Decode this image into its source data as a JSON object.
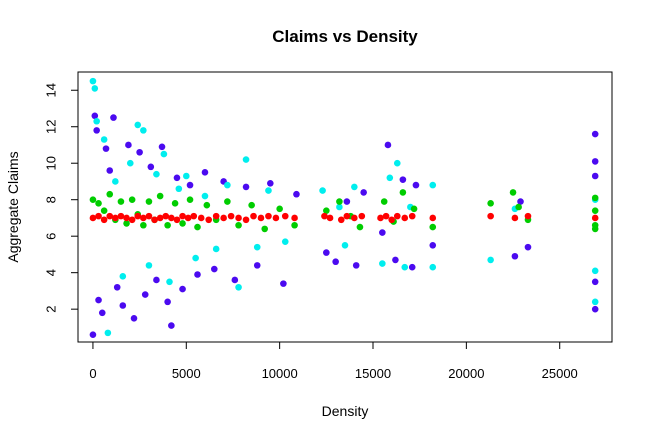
{
  "chart_data": {
    "type": "scatter",
    "title": "Claims vs Density",
    "xlabel": "Density",
    "ylabel": "Aggregate Claims",
    "xlim": [
      -800,
      27800
    ],
    "ylim": [
      0.2,
      15.0
    ],
    "x_ticks": [
      0,
      5000,
      10000,
      15000,
      20000,
      25000
    ],
    "x_tick_labels": [
      "0",
      "5000",
      "10000",
      "15000",
      "20000",
      "25000"
    ],
    "y_ticks": [
      2,
      4,
      6,
      8,
      10,
      12,
      14
    ],
    "y_tick_labels": [
      "2",
      "4",
      "6",
      "8",
      "10",
      "12",
      "14"
    ],
    "grid": false,
    "legend": "none",
    "series": [
      {
        "color": "#4b0af0",
        "points": [
          [
            0,
            0.6
          ],
          [
            100,
            12.6
          ],
          [
            200,
            11.8
          ],
          [
            300,
            2.5
          ],
          [
            500,
            1.8
          ],
          [
            700,
            10.8
          ],
          [
            900,
            9.6
          ],
          [
            1100,
            12.5
          ],
          [
            1300,
            3.2
          ],
          [
            1600,
            2.2
          ],
          [
            1900,
            11.0
          ],
          [
            2200,
            1.5
          ],
          [
            2500,
            10.6
          ],
          [
            2800,
            2.8
          ],
          [
            3100,
            9.8
          ],
          [
            3400,
            3.6
          ],
          [
            3700,
            10.9
          ],
          [
            4000,
            2.4
          ],
          [
            4200,
            1.1
          ],
          [
            4500,
            9.2
          ],
          [
            4800,
            3.1
          ],
          [
            5200,
            8.8
          ],
          [
            5600,
            3.9
          ],
          [
            6000,
            9.5
          ],
          [
            6500,
            4.2
          ],
          [
            7000,
            9.0
          ],
          [
            7600,
            3.6
          ],
          [
            8200,
            8.7
          ],
          [
            8800,
            4.4
          ],
          [
            9500,
            8.9
          ],
          [
            10200,
            3.4
          ],
          [
            10900,
            8.3
          ],
          [
            12500,
            5.1
          ],
          [
            13000,
            4.6
          ],
          [
            13600,
            7.9
          ],
          [
            14100,
            4.4
          ],
          [
            14500,
            8.4
          ],
          [
            15500,
            6.2
          ],
          [
            15800,
            11.0
          ],
          [
            16200,
            4.7
          ],
          [
            16600,
            9.1
          ],
          [
            17100,
            4.3
          ],
          [
            17300,
            8.8
          ],
          [
            18200,
            5.5
          ],
          [
            22600,
            4.9
          ],
          [
            22900,
            7.9
          ],
          [
            23300,
            5.4
          ],
          [
            26900,
            2.0
          ],
          [
            26900,
            11.6
          ],
          [
            26900,
            10.1
          ],
          [
            26900,
            9.3
          ],
          [
            26900,
            3.5
          ]
        ]
      },
      {
        "color": "#00eeee",
        "points": [
          [
            0,
            14.5
          ],
          [
            100,
            14.1
          ],
          [
            200,
            12.3
          ],
          [
            600,
            11.3
          ],
          [
            800,
            0.7
          ],
          [
            1200,
            9.0
          ],
          [
            1600,
            3.8
          ],
          [
            2000,
            10.0
          ],
          [
            2400,
            12.1
          ],
          [
            2700,
            11.8
          ],
          [
            3000,
            4.4
          ],
          [
            3400,
            9.4
          ],
          [
            3800,
            10.5
          ],
          [
            4100,
            3.5
          ],
          [
            4600,
            8.6
          ],
          [
            5000,
            9.3
          ],
          [
            5500,
            4.8
          ],
          [
            6000,
            8.2
          ],
          [
            6600,
            5.3
          ],
          [
            7200,
            8.8
          ],
          [
            7800,
            3.2
          ],
          [
            8200,
            10.2
          ],
          [
            8800,
            5.4
          ],
          [
            9400,
            8.5
          ],
          [
            10300,
            5.7
          ],
          [
            12300,
            8.5
          ],
          [
            13200,
            7.6
          ],
          [
            13500,
            5.5
          ],
          [
            14000,
            8.7
          ],
          [
            15500,
            4.5
          ],
          [
            15900,
            9.2
          ],
          [
            16300,
            10.0
          ],
          [
            16700,
            4.3
          ],
          [
            17000,
            7.6
          ],
          [
            18200,
            8.8
          ],
          [
            18200,
            4.3
          ],
          [
            21300,
            4.7
          ],
          [
            22600,
            7.5
          ],
          [
            26900,
            2.4
          ],
          [
            26900,
            8.0
          ],
          [
            26900,
            4.1
          ]
        ]
      },
      {
        "color": "#00cd00",
        "points": [
          [
            0,
            8.0
          ],
          [
            300,
            7.8
          ],
          [
            600,
            7.4
          ],
          [
            900,
            8.3
          ],
          [
            1200,
            6.9
          ],
          [
            1500,
            7.9
          ],
          [
            1800,
            6.7
          ],
          [
            2100,
            8.0
          ],
          [
            2400,
            7.2
          ],
          [
            2700,
            6.6
          ],
          [
            3000,
            7.9
          ],
          [
            3300,
            6.9
          ],
          [
            3600,
            8.2
          ],
          [
            4000,
            6.6
          ],
          [
            4400,
            7.8
          ],
          [
            4800,
            6.7
          ],
          [
            5200,
            8.0
          ],
          [
            5600,
            6.5
          ],
          [
            6100,
            7.7
          ],
          [
            6600,
            6.9
          ],
          [
            7200,
            7.9
          ],
          [
            7800,
            6.6
          ],
          [
            8500,
            7.7
          ],
          [
            9200,
            6.4
          ],
          [
            10000,
            7.5
          ],
          [
            10800,
            6.6
          ],
          [
            12500,
            7.4
          ],
          [
            13200,
            7.9
          ],
          [
            13800,
            7.1
          ],
          [
            14300,
            6.5
          ],
          [
            15600,
            7.9
          ],
          [
            16100,
            6.8
          ],
          [
            16600,
            8.4
          ],
          [
            17200,
            7.5
          ],
          [
            18200,
            6.5
          ],
          [
            21300,
            7.8
          ],
          [
            22500,
            8.4
          ],
          [
            22800,
            7.6
          ],
          [
            23300,
            6.9
          ],
          [
            26900,
            6.6
          ],
          [
            26900,
            7.4
          ],
          [
            26900,
            8.1
          ],
          [
            26900,
            6.4
          ]
        ]
      },
      {
        "color": "#ff0000",
        "points": [
          [
            0,
            7.0
          ],
          [
            300,
            7.1
          ],
          [
            600,
            6.9
          ],
          [
            900,
            7.1
          ],
          [
            1200,
            7.0
          ],
          [
            1500,
            7.1
          ],
          [
            1800,
            7.0
          ],
          [
            2100,
            6.9
          ],
          [
            2400,
            7.1
          ],
          [
            2700,
            7.0
          ],
          [
            3000,
            7.1
          ],
          [
            3300,
            6.9
          ],
          [
            3600,
            7.0
          ],
          [
            3900,
            7.1
          ],
          [
            4200,
            7.0
          ],
          [
            4500,
            6.9
          ],
          [
            4800,
            7.1
          ],
          [
            5100,
            7.0
          ],
          [
            5400,
            7.1
          ],
          [
            5800,
            7.0
          ],
          [
            6200,
            6.9
          ],
          [
            6600,
            7.1
          ],
          [
            7000,
            7.0
          ],
          [
            7400,
            7.1
          ],
          [
            7800,
            7.0
          ],
          [
            8200,
            6.9
          ],
          [
            8600,
            7.1
          ],
          [
            9000,
            7.0
          ],
          [
            9400,
            7.1
          ],
          [
            9800,
            7.0
          ],
          [
            10300,
            7.1
          ],
          [
            10800,
            7.0
          ],
          [
            12400,
            7.1
          ],
          [
            12700,
            7.0
          ],
          [
            13300,
            6.9
          ],
          [
            13600,
            7.1
          ],
          [
            14000,
            7.0
          ],
          [
            14400,
            7.1
          ],
          [
            15400,
            7.0
          ],
          [
            15700,
            7.1
          ],
          [
            16000,
            6.9
          ],
          [
            16300,
            7.1
          ],
          [
            16700,
            7.0
          ],
          [
            17100,
            7.1
          ],
          [
            18200,
            7.0
          ],
          [
            21300,
            7.1
          ],
          [
            22600,
            7.0
          ],
          [
            23300,
            7.1
          ],
          [
            26900,
            7.0
          ]
        ]
      }
    ]
  }
}
